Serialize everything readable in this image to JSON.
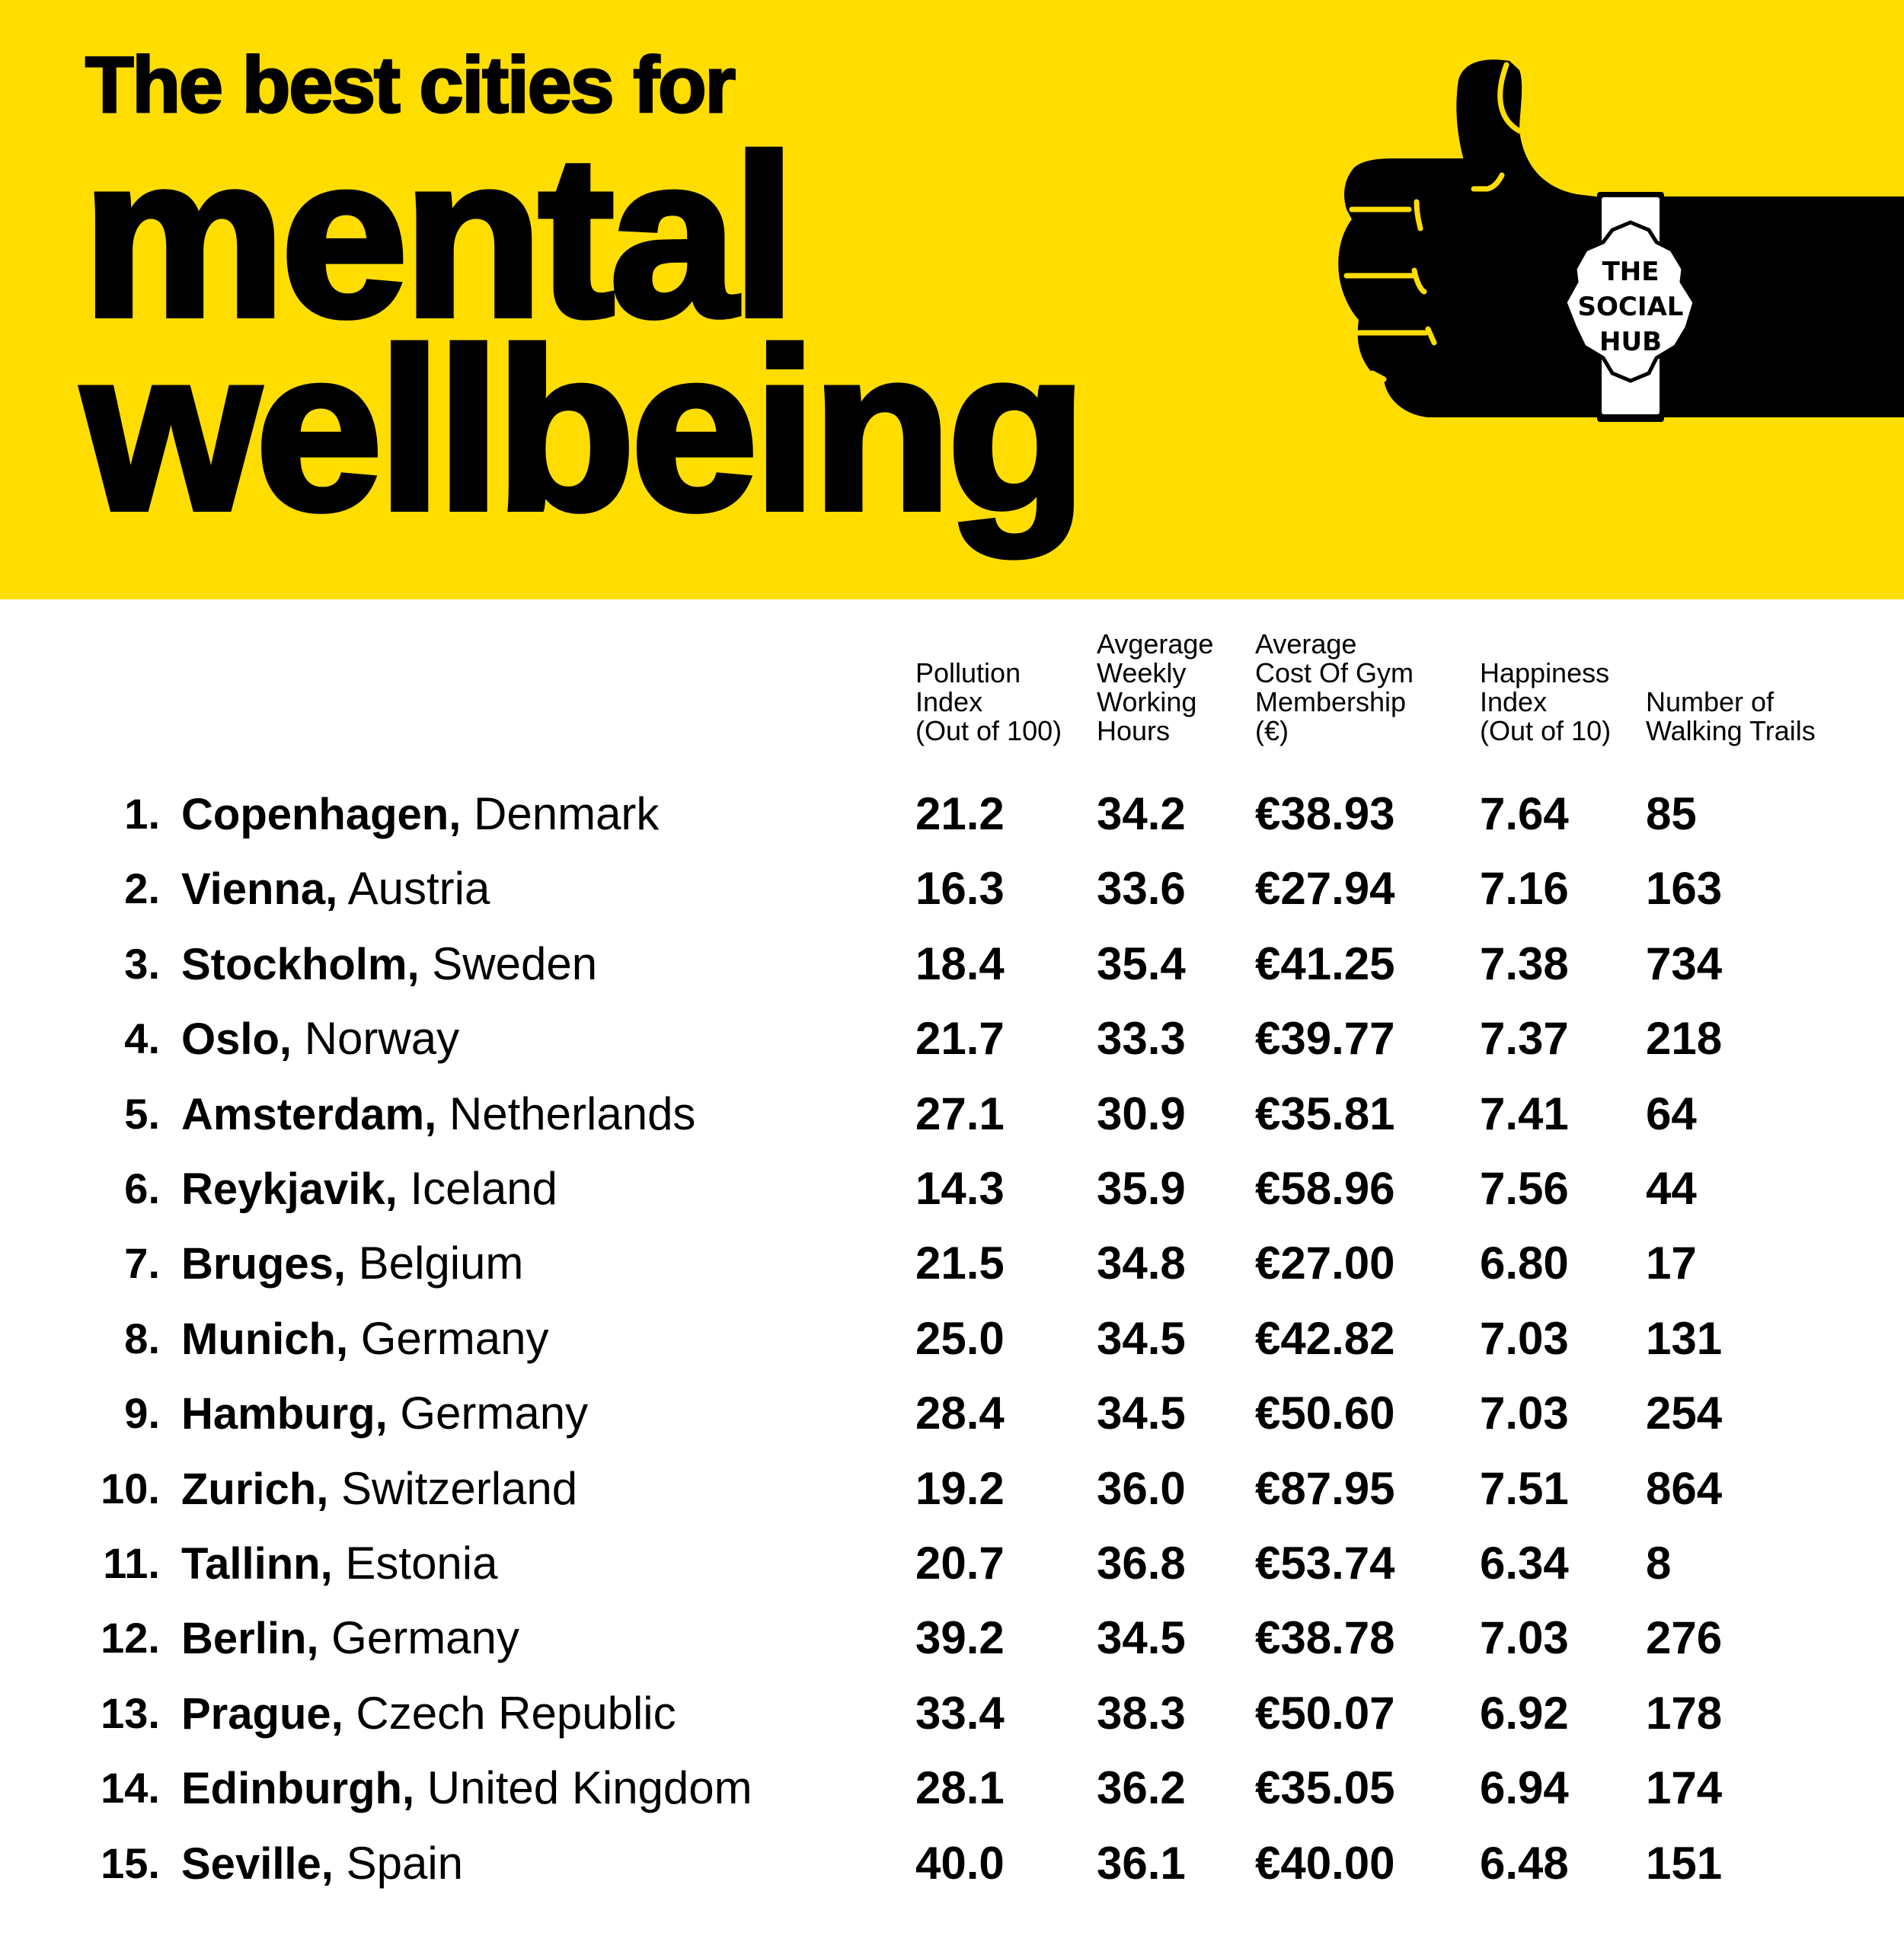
{
  "title": {
    "line1": "The best cities for",
    "line2": "mental",
    "line3": "wellbeing"
  },
  "logo": {
    "text": [
      "THE",
      "SOCIAL",
      "HUB"
    ]
  },
  "colors": {
    "brand_yellow": "#FFDD00",
    "text": "#000000"
  },
  "columns": [
    [
      "Pollution",
      "Index",
      "(Out of 100)"
    ],
    [
      "Avgerage",
      "Weekly",
      "Working",
      "Hours"
    ],
    [
      "Average",
      "Cost Of Gym",
      "Membership",
      "(€)"
    ],
    [
      "Happiness",
      "Index",
      "(Out of 10)"
    ],
    [
      "Number of",
      "Walking Trails"
    ]
  ],
  "rows": [
    {
      "rank": "1.",
      "city": "Copenhagen,",
      "country": "Denmark",
      "values": [
        "21.2",
        "34.2",
        "€38.93",
        "7.64",
        "85"
      ]
    },
    {
      "rank": "2.",
      "city": "Vienna,",
      "country": "Austria",
      "values": [
        "16.3",
        "33.6",
        "€27.94",
        "7.16",
        "163"
      ]
    },
    {
      "rank": "3.",
      "city": "Stockholm,",
      "country": "Sweden",
      "values": [
        "18.4",
        "35.4",
        "€41.25",
        "7.38",
        "734"
      ]
    },
    {
      "rank": "4.",
      "city": "Oslo,",
      "country": "Norway",
      "values": [
        "21.7",
        "33.3",
        "€39.77",
        "7.37",
        "218"
      ]
    },
    {
      "rank": "5.",
      "city": "Amsterdam,",
      "country": "Netherlands",
      "values": [
        "27.1",
        "30.9",
        "€35.81",
        "7.41",
        "64"
      ]
    },
    {
      "rank": "6.",
      "city": "Reykjavik,",
      "country": "Iceland",
      "values": [
        "14.3",
        "35.9",
        "€58.96",
        "7.56",
        "44"
      ]
    },
    {
      "rank": "7.",
      "city": "Bruges,",
      "country": "Belgium",
      "values": [
        "21.5",
        "34.8",
        "€27.00",
        "6.80",
        "17"
      ]
    },
    {
      "rank": "8.",
      "city": "Munich,",
      "country": "Germany",
      "values": [
        "25.0",
        "34.5",
        "€42.82",
        "7.03",
        "131"
      ]
    },
    {
      "rank": "9.",
      "city": "Hamburg,",
      "country": "Germany",
      "values": [
        "28.4",
        "34.5",
        "€50.60",
        "7.03",
        "254"
      ]
    },
    {
      "rank": "10.",
      "city": "Zurich,",
      "country": "Switzerland",
      "values": [
        "19.2",
        "36.0",
        "€87.95",
        "7.51",
        "864"
      ]
    },
    {
      "rank": "11.",
      "city": "Tallinn,",
      "country": "Estonia",
      "values": [
        "20.7",
        "36.8",
        "€53.74",
        "6.34",
        "8"
      ]
    },
    {
      "rank": "12.",
      "city": "Berlin,",
      "country": "Germany",
      "values": [
        "39.2",
        "34.5",
        "€38.78",
        "7.03",
        "276"
      ]
    },
    {
      "rank": "13.",
      "city": "Prague,",
      "country": "Czech Republic",
      "values": [
        "33.4",
        "38.3",
        "€50.07",
        "6.92",
        "178"
      ]
    },
    {
      "rank": "14.",
      "city": "Edinburgh,",
      "country": "United Kingdom",
      "values": [
        "28.1",
        "36.2",
        "€35.05",
        "6.94",
        "174"
      ]
    },
    {
      "rank": "15.",
      "city": "Seville,",
      "country": "Spain",
      "values": [
        "40.0",
        "36.1",
        "€40.00",
        "6.48",
        "151"
      ]
    }
  ]
}
